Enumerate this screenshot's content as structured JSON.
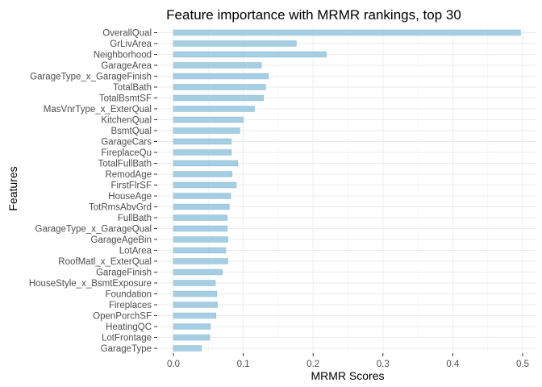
{
  "colors": {
    "bar_fill": "#a6cee3",
    "bar_stroke": "#8fbcd6",
    "grid": "#ebebeb"
  },
  "chart_data": {
    "type": "bar",
    "orientation": "horizontal",
    "title": "Feature importance with MRMR rankings, top 30",
    "xlabel": "MRMR Scores",
    "ylabel": "Features",
    "xlim": [
      0,
      0.5
    ],
    "xticks": [
      "0.0",
      "0.1",
      "0.2",
      "0.3",
      "0.4",
      "0.5"
    ],
    "xtick_values": [
      0,
      0.1,
      0.2,
      0.3,
      0.4,
      0.5
    ],
    "grid": true,
    "categories": [
      "OverallQual",
      "GrLivArea",
      "Neighborhood",
      "GarageArea",
      "GarageType_x_GarageFinish",
      "TotalBath",
      "TotalBsmtSF",
      "MasVnrType_x_ExterQual",
      "KitchenQual",
      "BsmtQual",
      "GarageCars",
      "FireplaceQu",
      "TotalFullBath",
      "RemodAge",
      "FirstFlrSF",
      "HouseAge",
      "TotRmsAbvGrd",
      "FullBath",
      "GarageType_x_GarageQual",
      "GarageAgeBin",
      "LotArea",
      "RoofMatl_x_ExterQual",
      "GarageFinish",
      "HouseStyle_x_BsmtExposure",
      "Foundation",
      "Fireplaces",
      "OpenPorchSF",
      "HeatingQC",
      "LotFrontage",
      "GarageType"
    ],
    "values": [
      0.497,
      0.176,
      0.219,
      0.126,
      0.136,
      0.132,
      0.129,
      0.116,
      0.1,
      0.095,
      0.083,
      0.083,
      0.092,
      0.084,
      0.09,
      0.082,
      0.08,
      0.077,
      0.077,
      0.078,
      0.075,
      0.078,
      0.07,
      0.06,
      0.062,
      0.063,
      0.061,
      0.053,
      0.052,
      0.04
    ]
  }
}
